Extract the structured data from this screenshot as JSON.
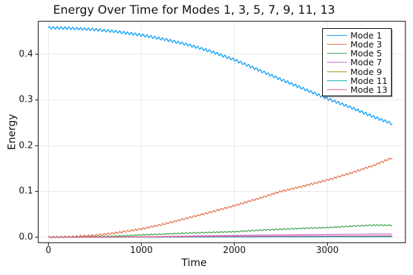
{
  "figure": {
    "title": "Energy Over Time for Modes 1, 3, 5, 7, 9, 11, 13",
    "xlabel": "Time",
    "ylabel": "Energy"
  },
  "chart_data": {
    "type": "line",
    "title": "Energy Over Time for Modes 1, 3, 5, 7, 9, 11, 13",
    "xlabel": "Time",
    "ylabel": "Energy",
    "grid": true,
    "legend_position": "top-right",
    "xlim": [
      -110,
      3840
    ],
    "ylim": [
      -0.012,
      0.472
    ],
    "x_ticks": {
      "values": [
        0,
        1000,
        2000,
        3000
      ],
      "labels": [
        "0",
        "1000",
        "2000",
        "3000"
      ]
    },
    "y_ticks": {
      "values": [
        0.0,
        0.1,
        0.2,
        0.3,
        0.4
      ],
      "labels": [
        "0.0",
        "0.1",
        "0.2",
        "0.3",
        "0.4"
      ]
    },
    "x": [
      0,
      250,
      500,
      750,
      1000,
      1250,
      1500,
      1750,
      2000,
      2250,
      2500,
      2750,
      3000,
      3250,
      3500,
      3700
    ],
    "osc_period": 42,
    "series": [
      {
        "name": "Mode 1",
        "color": "#009AFA",
        "osc_amp": 0.0028,
        "values": [
          0.458,
          0.4567,
          0.454,
          0.449,
          0.442,
          0.4325,
          0.421,
          0.406,
          0.388,
          0.3665,
          0.345,
          0.324,
          0.303,
          0.284,
          0.263,
          0.248
        ]
      },
      {
        "name": "Mode 3",
        "color": "#E26E47",
        "osc_amp": 0.0018,
        "values": [
          0.0,
          0.001,
          0.004,
          0.01,
          0.018,
          0.029,
          0.042,
          0.055,
          0.069,
          0.084,
          0.1,
          0.112,
          0.125,
          0.14,
          0.157,
          0.174
        ]
      },
      {
        "name": "Mode 5",
        "color": "#3EA44E",
        "osc_amp": 0.0011,
        "values": [
          0.0,
          0.0003,
          0.001,
          0.0025,
          0.005,
          0.007,
          0.009,
          0.0105,
          0.012,
          0.015,
          0.0175,
          0.0195,
          0.021,
          0.024,
          0.0265,
          0.026
        ]
      },
      {
        "name": "Mode 7",
        "color": "#C371D2",
        "osc_amp": 0.0004,
        "values": [
          0.0,
          0.0001,
          0.0003,
          0.0006,
          0.001,
          0.0016,
          0.0025,
          0.0032,
          0.004,
          0.0046,
          0.005,
          0.0054,
          0.0058,
          0.0063,
          0.0068,
          0.007
        ]
      },
      {
        "name": "Mode 9",
        "color": "#AC8E18",
        "osc_amp": 0.0002,
        "values": [
          0.0,
          0.0,
          0.0001,
          0.0002,
          0.0003,
          0.0005,
          0.0007,
          0.0009,
          0.0011,
          0.0012,
          0.0013,
          0.0014,
          0.0015,
          0.0015,
          0.0016,
          0.0016
        ]
      },
      {
        "name": "Mode 11",
        "color": "#00AAAE",
        "osc_amp": 0.0002,
        "values": [
          0.0,
          0.0,
          0.0,
          0.0001,
          0.0002,
          0.0003,
          0.0004,
          0.0005,
          0.0006,
          0.0007,
          0.0008,
          0.0008,
          0.0009,
          0.0009,
          0.001,
          0.001
        ]
      },
      {
        "name": "Mode 13",
        "color": "#ED5E93",
        "osc_amp": 0.0003,
        "values": [
          0.0,
          0.0001,
          0.0002,
          0.0004,
          0.0007,
          0.001,
          0.0013,
          0.0016,
          0.0019,
          0.0021,
          0.0023,
          0.0025,
          0.0026,
          0.0027,
          0.0028,
          0.003
        ]
      }
    ],
    "style": {
      "grid_color": "#e8e8e8",
      "frame_color": "#26282b",
      "background": "#ffffff"
    }
  }
}
